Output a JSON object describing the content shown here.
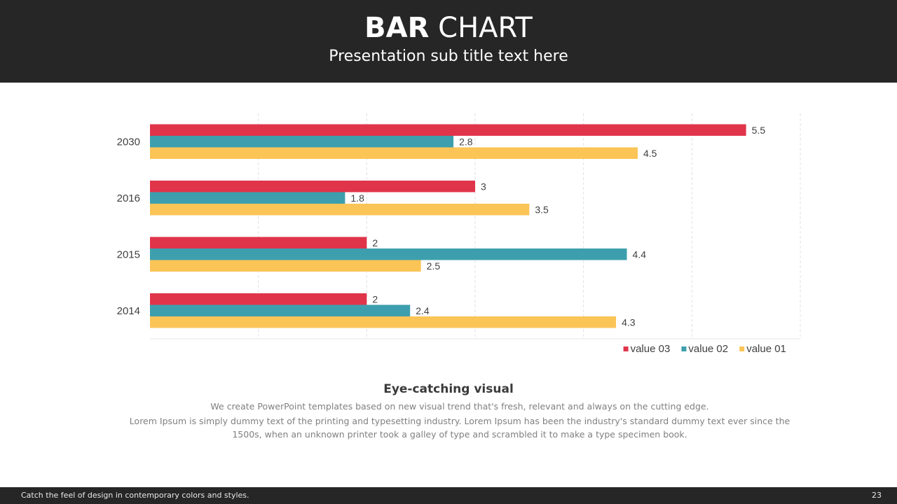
{
  "header": {
    "title_bold": "BAR",
    "title_light": "CHART",
    "subtitle": "Presentation sub title text here"
  },
  "chart_data": {
    "type": "bar",
    "orientation": "horizontal",
    "categories": [
      "2030",
      "2016",
      "2015",
      "2014"
    ],
    "series": [
      {
        "name": "value 03",
        "color": "#e0344a",
        "values": [
          5.5,
          3,
          2,
          2
        ]
      },
      {
        "name": "value 02",
        "color": "#3d9fae",
        "values": [
          2.8,
          1.8,
          4.4,
          2.4
        ]
      },
      {
        "name": "value 01",
        "color": "#fac457",
        "values": [
          4.5,
          3.5,
          2.5,
          4.3
        ]
      }
    ],
    "xlim": [
      0,
      6
    ],
    "grid": true,
    "legend": "bottom-right",
    "show_data_labels": true
  },
  "description": {
    "title": "Eye-catching visual",
    "line1": "We create PowerPoint templates based on new visual trend that's fresh, relevant and always on the cutting edge.",
    "line2": "Lorem Ipsum is simply dummy text of the printing and typesetting industry. Lorem Ipsum has been the industry's standard dummy text ever since the 1500s, when an unknown printer took a galley of type and scrambled it to make a type specimen book."
  },
  "footer": {
    "text": "Catch the feel of design in contemporary colors and styles.",
    "page": "23"
  }
}
